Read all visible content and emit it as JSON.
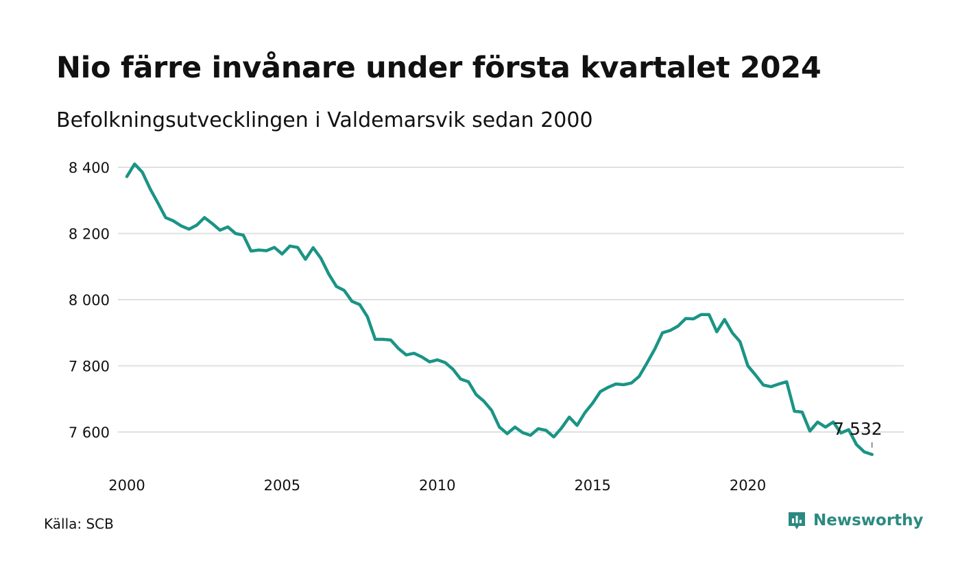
{
  "title": "Nio färre invånare under första kvartalet 2024",
  "subtitle": "Befolkningsutvecklingen i Valdemarsvik sedan 2000",
  "source": "Källa: SCB",
  "brand": {
    "name": "Newsworthy",
    "color": "#2b8a80",
    "icon": "chart-bubble-icon"
  },
  "chart_data": {
    "type": "line",
    "line_color": "#1a9485",
    "grid": true,
    "ylim": [
      7510,
      8420
    ],
    "xlim": [
      2000,
      2024.25
    ],
    "y_ticks": [
      7600,
      7800,
      8000,
      8200,
      8400
    ],
    "y_tick_labels": [
      "7 600",
      "7 800",
      "8 000",
      "8 200",
      "8 400"
    ],
    "x_ticks": [
      2000,
      2005,
      2010,
      2015,
      2020
    ],
    "x_tick_labels": [
      "2000",
      "2005",
      "2010",
      "2015",
      "2020"
    ],
    "annotation": {
      "label": "7 532",
      "x": 2024.0,
      "y": 7532
    },
    "series": [
      {
        "x": [
          2000.0,
          2000.25,
          2000.5,
          2000.75,
          2001.0,
          2001.25,
          2001.5,
          2001.75,
          2002.0,
          2002.25,
          2002.5,
          2002.75,
          2003.0,
          2003.25,
          2003.5,
          2003.75,
          2004.0,
          2004.25,
          2004.5,
          2004.75,
          2005.0,
          2005.25,
          2005.5,
          2005.75,
          2006.0,
          2006.25,
          2006.5,
          2006.75,
          2007.0,
          2007.25,
          2007.5,
          2007.75,
          2008.0,
          2008.25,
          2008.5,
          2008.75,
          2009.0,
          2009.25,
          2009.5,
          2009.75,
          2010.0,
          2010.25,
          2010.5,
          2010.75,
          2011.0,
          2011.25,
          2011.5,
          2011.75,
          2012.0,
          2012.25,
          2012.5,
          2012.75,
          2013.0,
          2013.25,
          2013.5,
          2013.75,
          2014.0,
          2014.25,
          2014.5,
          2014.75,
          2015.0,
          2015.25,
          2015.5,
          2015.75,
          2016.0,
          2016.25,
          2016.5,
          2016.75,
          2017.0,
          2017.25,
          2017.5,
          2017.75,
          2018.0,
          2018.25,
          2018.5,
          2018.75,
          2019.0,
          2019.25,
          2019.5,
          2019.75,
          2020.0,
          2020.25,
          2020.5,
          2020.75,
          2021.0,
          2021.25,
          2021.5,
          2021.75,
          2022.0,
          2022.25,
          2022.5,
          2022.75,
          2023.0,
          2023.25,
          2023.5,
          2023.75,
          2024.0
        ],
        "values": [
          8372,
          8410,
          8385,
          8335,
          8292,
          8248,
          8238,
          8223,
          8213,
          8225,
          8248,
          8230,
          8210,
          8220,
          8200,
          8195,
          8147,
          8150,
          8148,
          8158,
          8138,
          8162,
          8158,
          8122,
          8157,
          8125,
          8078,
          8040,
          8028,
          7995,
          7985,
          7948,
          7880,
          7880,
          7878,
          7852,
          7833,
          7838,
          7827,
          7812,
          7818,
          7810,
          7790,
          7760,
          7752,
          7713,
          7693,
          7665,
          7615,
          7595,
          7615,
          7598,
          7590,
          7610,
          7605,
          7585,
          7612,
          7645,
          7620,
          7658,
          7687,
          7722,
          7735,
          7745,
          7743,
          7748,
          7768,
          7808,
          7850,
          7900,
          7907,
          7920,
          7943,
          7942,
          7955,
          7955,
          7903,
          7940,
          7900,
          7873,
          7800,
          7772,
          7742,
          7737,
          7745,
          7752,
          7663,
          7660,
          7603,
          7630,
          7615,
          7630,
          7597,
          7607,
          7562,
          7540,
          7532
        ]
      }
    ]
  }
}
